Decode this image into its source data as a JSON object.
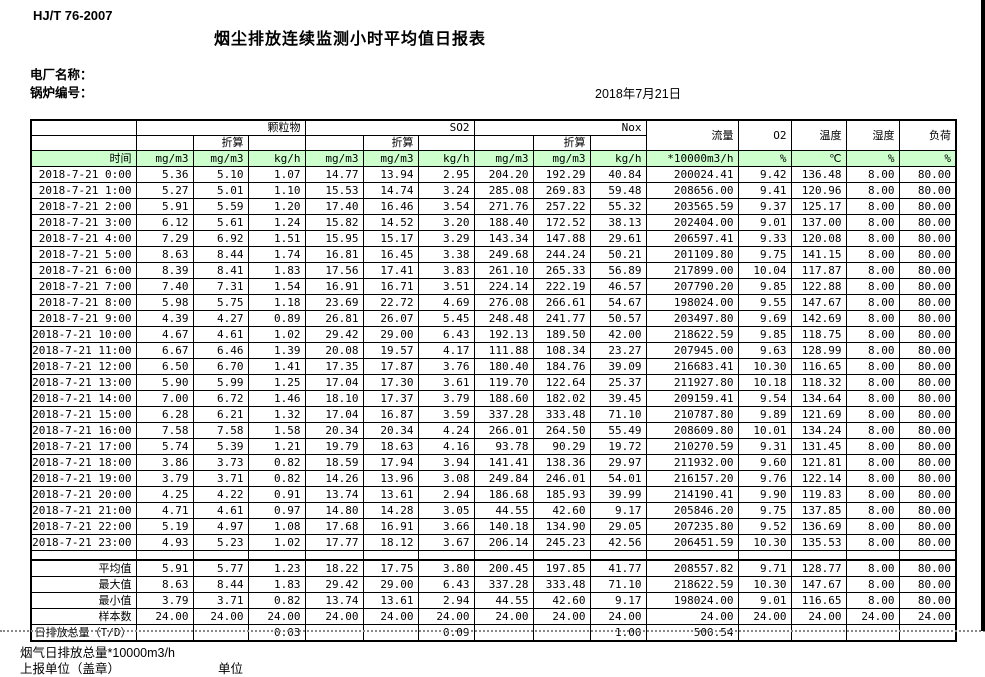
{
  "page": {
    "doc_code": "HJ/T  76-2007",
    "title": "烟尘排放连续监测小时平均值日报表",
    "plant_label": "电厂名称：",
    "boiler_label": "锅炉编号：",
    "date": "2018年7月21日"
  },
  "table": {
    "header": {
      "time": "时间",
      "particulate": "颗粒物",
      "so2": "SO2",
      "nox": "Nox",
      "converted": "折算",
      "flow": "流量",
      "o2": "O2",
      "temperature": "温度",
      "humidity": "湿度",
      "load": "负荷",
      "units": [
        "mg/m3",
        "mg/m3",
        "kg/h",
        "mg/m3",
        "mg/m3",
        "kg/h",
        "mg/m3",
        "mg/m3",
        "kg/h",
        "*10000m3/h",
        "%",
        "℃",
        "%",
        "%"
      ]
    },
    "rows": [
      {
        "time": "2018-7-21  0:00",
        "values": [
          "5.36",
          "5.10",
          "1.07",
          "14.77",
          "13.94",
          "2.95",
          "204.20",
          "192.29",
          "40.84",
          "200024.41",
          "9.42",
          "136.48",
          "8.00",
          "80.00"
        ]
      },
      {
        "time": "2018-7-21  1:00",
        "values": [
          "5.27",
          "5.01",
          "1.10",
          "15.53",
          "14.74",
          "3.24",
          "285.08",
          "269.83",
          "59.48",
          "208656.00",
          "9.41",
          "120.96",
          "8.00",
          "80.00"
        ]
      },
      {
        "time": "2018-7-21  2:00",
        "values": [
          "5.91",
          "5.59",
          "1.20",
          "17.40",
          "16.46",
          "3.54",
          "271.76",
          "257.22",
          "55.32",
          "203565.59",
          "9.37",
          "125.17",
          "8.00",
          "80.00"
        ]
      },
      {
        "time": "2018-7-21  3:00",
        "values": [
          "6.12",
          "5.61",
          "1.24",
          "15.82",
          "14.52",
          "3.20",
          "188.40",
          "172.52",
          "38.13",
          "202404.00",
          "9.01",
          "137.00",
          "8.00",
          "80.00"
        ]
      },
      {
        "time": "2018-7-21  4:00",
        "values": [
          "7.29",
          "6.92",
          "1.51",
          "15.95",
          "15.17",
          "3.29",
          "143.34",
          "147.88",
          "29.61",
          "206597.41",
          "9.33",
          "120.08",
          "8.00",
          "80.00"
        ]
      },
      {
        "time": "2018-7-21  5:00",
        "values": [
          "8.63",
          "8.44",
          "1.74",
          "16.81",
          "16.45",
          "3.38",
          "249.68",
          "244.24",
          "50.21",
          "201109.80",
          "9.75",
          "141.15",
          "8.00",
          "80.00"
        ]
      },
      {
        "time": "2018-7-21  6:00",
        "values": [
          "8.39",
          "8.41",
          "1.83",
          "17.56",
          "17.41",
          "3.83",
          "261.10",
          "265.33",
          "56.89",
          "217899.00",
          "10.04",
          "117.87",
          "8.00",
          "80.00"
        ]
      },
      {
        "time": "2018-7-21  7:00",
        "values": [
          "7.40",
          "7.31",
          "1.54",
          "16.91",
          "16.71",
          "3.51",
          "224.14",
          "222.19",
          "46.57",
          "207790.20",
          "9.85",
          "122.88",
          "8.00",
          "80.00"
        ]
      },
      {
        "time": "2018-7-21  8:00",
        "values": [
          "5.98",
          "5.75",
          "1.18",
          "23.69",
          "22.72",
          "4.69",
          "276.08",
          "266.61",
          "54.67",
          "198024.00",
          "9.55",
          "147.67",
          "8.00",
          "80.00"
        ]
      },
      {
        "time": "2018-7-21  9:00",
        "values": [
          "4.39",
          "4.27",
          "0.89",
          "26.81",
          "26.07",
          "5.45",
          "248.48",
          "241.77",
          "50.57",
          "203497.80",
          "9.69",
          "142.69",
          "8.00",
          "80.00"
        ]
      },
      {
        "time": "2018-7-21 10:00",
        "values": [
          "4.67",
          "4.61",
          "1.02",
          "29.42",
          "29.00",
          "6.43",
          "192.13",
          "189.50",
          "42.00",
          "218622.59",
          "9.85",
          "118.75",
          "8.00",
          "80.00"
        ]
      },
      {
        "time": "2018-7-21 11:00",
        "values": [
          "6.67",
          "6.46",
          "1.39",
          "20.08",
          "19.57",
          "4.17",
          "111.88",
          "108.34",
          "23.27",
          "207945.00",
          "9.63",
          "128.99",
          "8.00",
          "80.00"
        ]
      },
      {
        "time": "2018-7-21 12:00",
        "values": [
          "6.50",
          "6.70",
          "1.41",
          "17.35",
          "17.87",
          "3.76",
          "180.40",
          "184.76",
          "39.09",
          "216683.41",
          "10.30",
          "116.65",
          "8.00",
          "80.00"
        ]
      },
      {
        "time": "2018-7-21 13:00",
        "values": [
          "5.90",
          "5.99",
          "1.25",
          "17.04",
          "17.30",
          "3.61",
          "119.70",
          "122.64",
          "25.37",
          "211927.80",
          "10.18",
          "118.32",
          "8.00",
          "80.00"
        ]
      },
      {
        "time": "2018-7-21 14:00",
        "values": [
          "7.00",
          "6.72",
          "1.46",
          "18.10",
          "17.37",
          "3.79",
          "188.60",
          "182.02",
          "39.45",
          "209159.41",
          "9.54",
          "134.64",
          "8.00",
          "80.00"
        ]
      },
      {
        "time": "2018-7-21 15:00",
        "values": [
          "6.28",
          "6.21",
          "1.32",
          "17.04",
          "16.87",
          "3.59",
          "337.28",
          "333.48",
          "71.10",
          "210787.80",
          "9.89",
          "121.69",
          "8.00",
          "80.00"
        ]
      },
      {
        "time": "2018-7-21 16:00",
        "values": [
          "7.58",
          "7.58",
          "1.58",
          "20.34",
          "20.34",
          "4.24",
          "266.01",
          "264.50",
          "55.49",
          "208609.80",
          "10.01",
          "134.24",
          "8.00",
          "80.00"
        ]
      },
      {
        "time": "2018-7-21 17:00",
        "values": [
          "5.74",
          "5.39",
          "1.21",
          "19.79",
          "18.63",
          "4.16",
          "93.78",
          "90.29",
          "19.72",
          "210270.59",
          "9.31",
          "131.45",
          "8.00",
          "80.00"
        ]
      },
      {
        "time": "2018-7-21 18:00",
        "values": [
          "3.86",
          "3.73",
          "0.82",
          "18.59",
          "17.94",
          "3.94",
          "141.41",
          "138.36",
          "29.97",
          "211932.00",
          "9.60",
          "121.81",
          "8.00",
          "80.00"
        ]
      },
      {
        "time": "2018-7-21 19:00",
        "values": [
          "3.79",
          "3.71",
          "0.82",
          "14.26",
          "13.96",
          "3.08",
          "249.84",
          "246.01",
          "54.01",
          "216157.20",
          "9.76",
          "122.14",
          "8.00",
          "80.00"
        ]
      },
      {
        "time": "2018-7-21 20:00",
        "values": [
          "4.25",
          "4.22",
          "0.91",
          "13.74",
          "13.61",
          "2.94",
          "186.68",
          "185.93",
          "39.99",
          "214190.41",
          "9.90",
          "119.83",
          "8.00",
          "80.00"
        ]
      },
      {
        "time": "2018-7-21 21:00",
        "values": [
          "4.71",
          "4.61",
          "0.97",
          "14.80",
          "14.28",
          "3.05",
          "44.55",
          "42.60",
          "9.17",
          "205846.20",
          "9.75",
          "137.85",
          "8.00",
          "80.00"
        ]
      },
      {
        "time": "2018-7-21 22:00",
        "values": [
          "5.19",
          "4.97",
          "1.08",
          "17.68",
          "16.91",
          "3.66",
          "140.18",
          "134.90",
          "29.05",
          "207235.80",
          "9.52",
          "136.69",
          "8.00",
          "80.00"
        ]
      },
      {
        "time": "2018-7-21 23:00",
        "values": [
          "4.93",
          "5.23",
          "1.02",
          "17.77",
          "18.12",
          "3.67",
          "206.14",
          "245.23",
          "42.56",
          "206451.59",
          "10.30",
          "135.53",
          "8.00",
          "80.00"
        ]
      }
    ],
    "summary": [
      {
        "label": "平均值",
        "values": [
          "5.91",
          "5.77",
          "1.23",
          "18.22",
          "17.75",
          "3.80",
          "200.45",
          "197.85",
          "41.77",
          "208557.82",
          "9.71",
          "128.77",
          "8.00",
          "80.00"
        ]
      },
      {
        "label": "最大值",
        "values": [
          "8.63",
          "8.44",
          "1.83",
          "29.42",
          "29.00",
          "6.43",
          "337.28",
          "333.48",
          "71.10",
          "218622.59",
          "10.30",
          "147.67",
          "8.00",
          "80.00"
        ]
      },
      {
        "label": "最小值",
        "values": [
          "3.79",
          "3.71",
          "0.82",
          "13.74",
          "13.61",
          "2.94",
          "44.55",
          "42.60",
          "9.17",
          "198024.00",
          "9.01",
          "116.65",
          "8.00",
          "80.00"
        ]
      },
      {
        "label": "样本数",
        "values": [
          "24.00",
          "24.00",
          "24.00",
          "24.00",
          "24.00",
          "24.00",
          "24.00",
          "24.00",
          "24.00",
          "24.00",
          "24.00",
          "24.00",
          "24.00",
          "24.00"
        ]
      },
      {
        "label": "日排放总量（T/D）",
        "values": [
          "",
          "",
          "0.03",
          "",
          "",
          "0.09",
          "",
          "",
          "1.00",
          "500.54",
          "",
          "",
          "",
          ""
        ]
      }
    ]
  },
  "footer": {
    "flue_total": "烟气日排放总量*10000m3/h",
    "report_unit": "上报单位（盖章）",
    "unit": "单位"
  }
}
